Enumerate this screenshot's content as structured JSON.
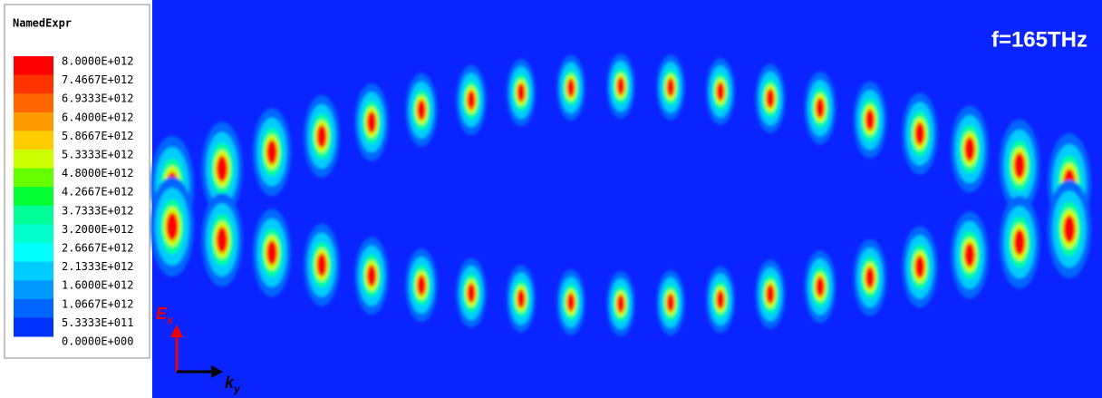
{
  "legend": {
    "title": "NamedExpr",
    "labels": [
      "8.0000E+012",
      "7.4667E+012",
      "6.9333E+012",
      "6.4000E+012",
      "5.8667E+012",
      "5.3333E+012",
      "4.8000E+012",
      "4.2667E+012",
      "3.7333E+012",
      "3.2000E+012",
      "2.6667E+012",
      "2.1333E+012",
      "1.6000E+012",
      "1.0667E+012",
      "5.3333E+011",
      "0.0000E+000"
    ]
  },
  "annotation": "f=165THz",
  "axes": {
    "e": "E",
    "e_sub": "x",
    "k": "k",
    "k_sub": "y"
  }
}
